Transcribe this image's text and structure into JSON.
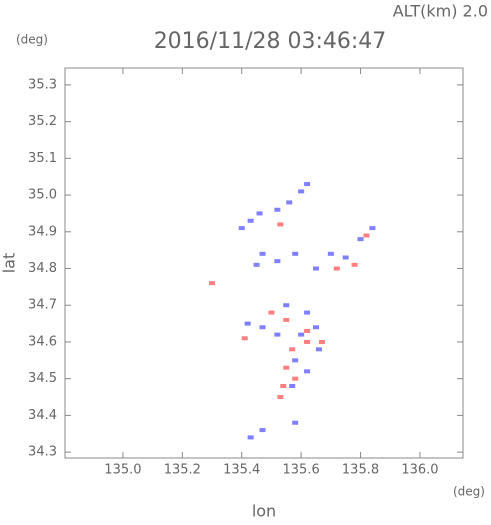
{
  "chart_data": {
    "type": "scatter",
    "title": "2016/11/28 03:46:47",
    "subtitle": "ALT(km) 2.0",
    "y_unit": "(deg)",
    "x_unit": "(deg)",
    "x_label": "lon",
    "y_label": "lat",
    "xlim": [
      134.805,
      136.145
    ],
    "ylim": [
      34.284,
      35.346
    ],
    "xticks": [
      {
        "value": 135.0,
        "label": "135.0"
      },
      {
        "value": 135.2,
        "label": "135.2"
      },
      {
        "value": 135.4,
        "label": "135.4"
      },
      {
        "value": 135.6,
        "label": "135.6"
      },
      {
        "value": 135.8,
        "label": "135.8"
      },
      {
        "value": 136.0,
        "label": "136.0"
      }
    ],
    "yticks": [
      34.3,
      34.4,
      34.5,
      34.6,
      34.7,
      34.8,
      34.9,
      {
        "value": 35.0,
        "label": "35.0"
      },
      35.1,
      35.2,
      35.3
    ],
    "series": [
      {
        "color": "#7f7fff",
        "x": [
          135.43,
          135.46,
          135.52,
          135.56,
          135.6,
          135.62,
          135.4,
          135.47,
          135.52,
          135.58,
          135.65,
          135.7,
          135.75,
          135.8,
          135.84,
          135.55,
          135.62,
          135.65,
          135.6,
          135.52,
          135.47,
          135.42,
          135.58,
          135.62,
          135.57,
          135.43,
          135.47,
          135.58,
          135.66,
          135.45
        ],
        "y": [
          34.93,
          34.95,
          34.96,
          34.98,
          35.01,
          35.03,
          34.91,
          34.84,
          34.82,
          34.84,
          34.8,
          34.84,
          34.83,
          34.88,
          34.91,
          34.7,
          34.68,
          34.64,
          34.62,
          34.62,
          34.64,
          34.65,
          34.55,
          34.52,
          34.48,
          34.34,
          34.36,
          34.38,
          34.58,
          34.81
        ]
      },
      {
        "color": "#ff7f7f",
        "x": [
          135.3,
          135.53,
          135.72,
          135.78,
          135.55,
          135.62,
          135.57,
          135.55,
          135.58,
          135.54,
          135.53,
          135.62,
          135.67,
          135.41,
          135.5,
          135.82
        ],
        "y": [
          34.76,
          34.92,
          34.8,
          34.81,
          34.66,
          34.63,
          34.58,
          34.53,
          34.5,
          34.48,
          34.45,
          34.6,
          34.6,
          34.61,
          34.68,
          34.89
        ]
      }
    ]
  }
}
